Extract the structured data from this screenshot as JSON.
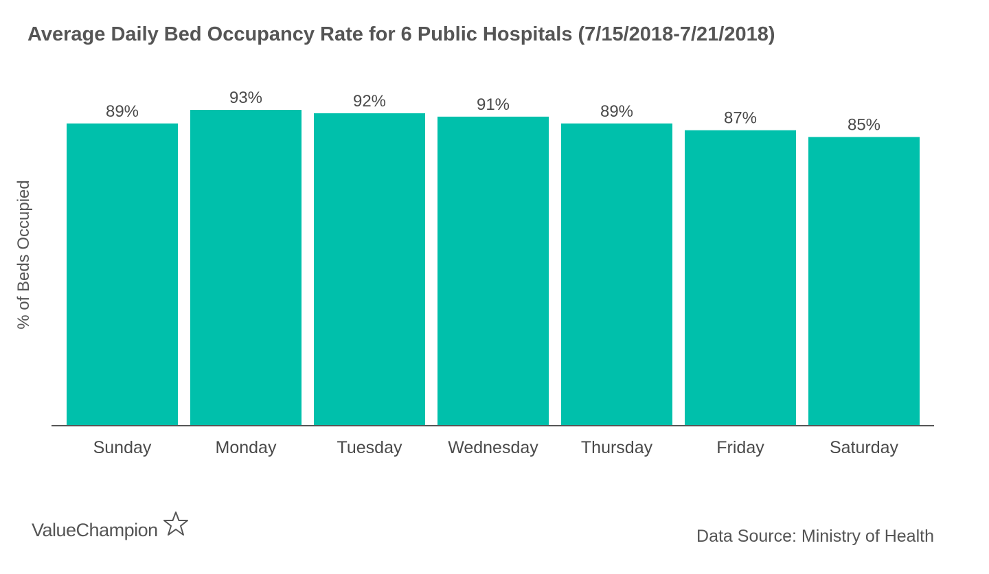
{
  "chart_data": {
    "type": "bar",
    "title": "Average Daily Bed Occupancy Rate for 6 Public Hospitals (7/15/2018-7/21/2018)",
    "xlabel": "",
    "ylabel": "% of Beds Occupied",
    "categories": [
      "Sunday",
      "Monday",
      "Tuesday",
      "Wednesday",
      "Thursday",
      "Friday",
      "Saturday"
    ],
    "values": [
      89,
      93,
      92,
      91,
      89,
      87,
      85
    ],
    "data_labels": [
      "89%",
      "93%",
      "92%",
      "91%",
      "89%",
      "87%",
      "85%"
    ],
    "ylim": [
      0,
      100
    ],
    "grid": false,
    "legend": "none",
    "bar_color": "#00c0ab"
  },
  "logo": {
    "text": "ValueChampion",
    "icon": "star-outline-icon"
  },
  "source": "Data Source: Ministry of Health"
}
